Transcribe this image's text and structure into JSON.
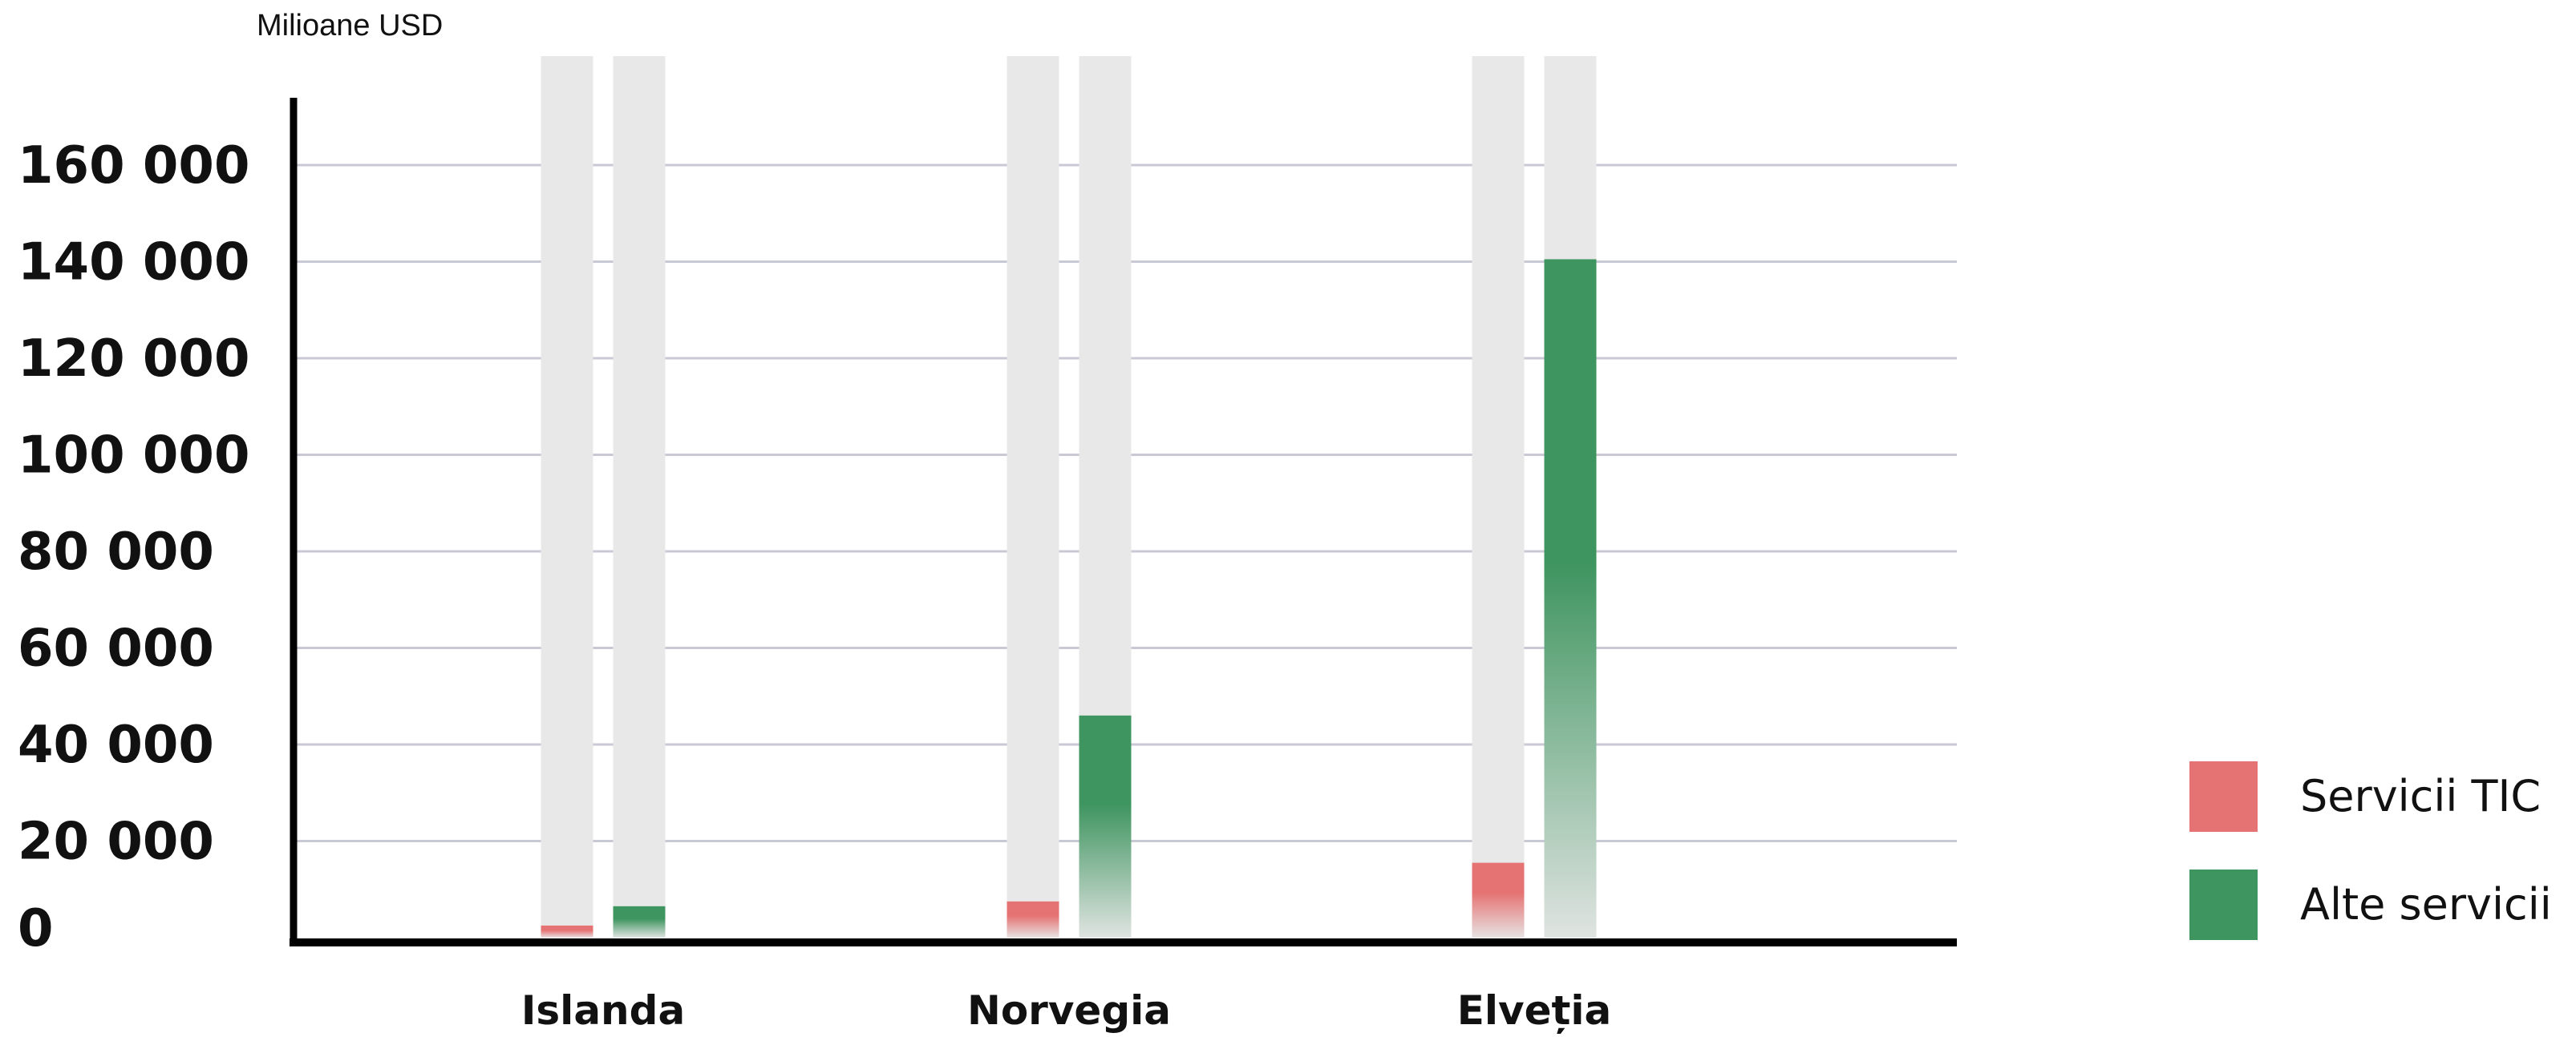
{
  "chart_data": {
    "type": "bar",
    "unit_label": "Milioane USD",
    "categories": [
      "Islanda",
      "Norvegia",
      "Elveția"
    ],
    "series": [
      {
        "name": "Servicii TIC",
        "color": "#e57373",
        "values": [
          2500,
          7500,
          15500
        ]
      },
      {
        "name": "Alte servicii",
        "color": "#3f9560",
        "values": [
          6500,
          46000,
          140500
        ]
      }
    ],
    "y_ticks": [
      0,
      20000,
      40000,
      60000,
      80000,
      100000,
      120000,
      140000,
      160000
    ],
    "y_tick_labels": [
      "0",
      "20 000",
      "40 000",
      "60 000",
      "80 000",
      "100 000",
      "120 000",
      "140 000",
      "160 000"
    ],
    "ylim": [
      0,
      180000
    ],
    "grid": true,
    "legend_position": "bottom-right",
    "background_track_color": "#e8e8e8"
  }
}
